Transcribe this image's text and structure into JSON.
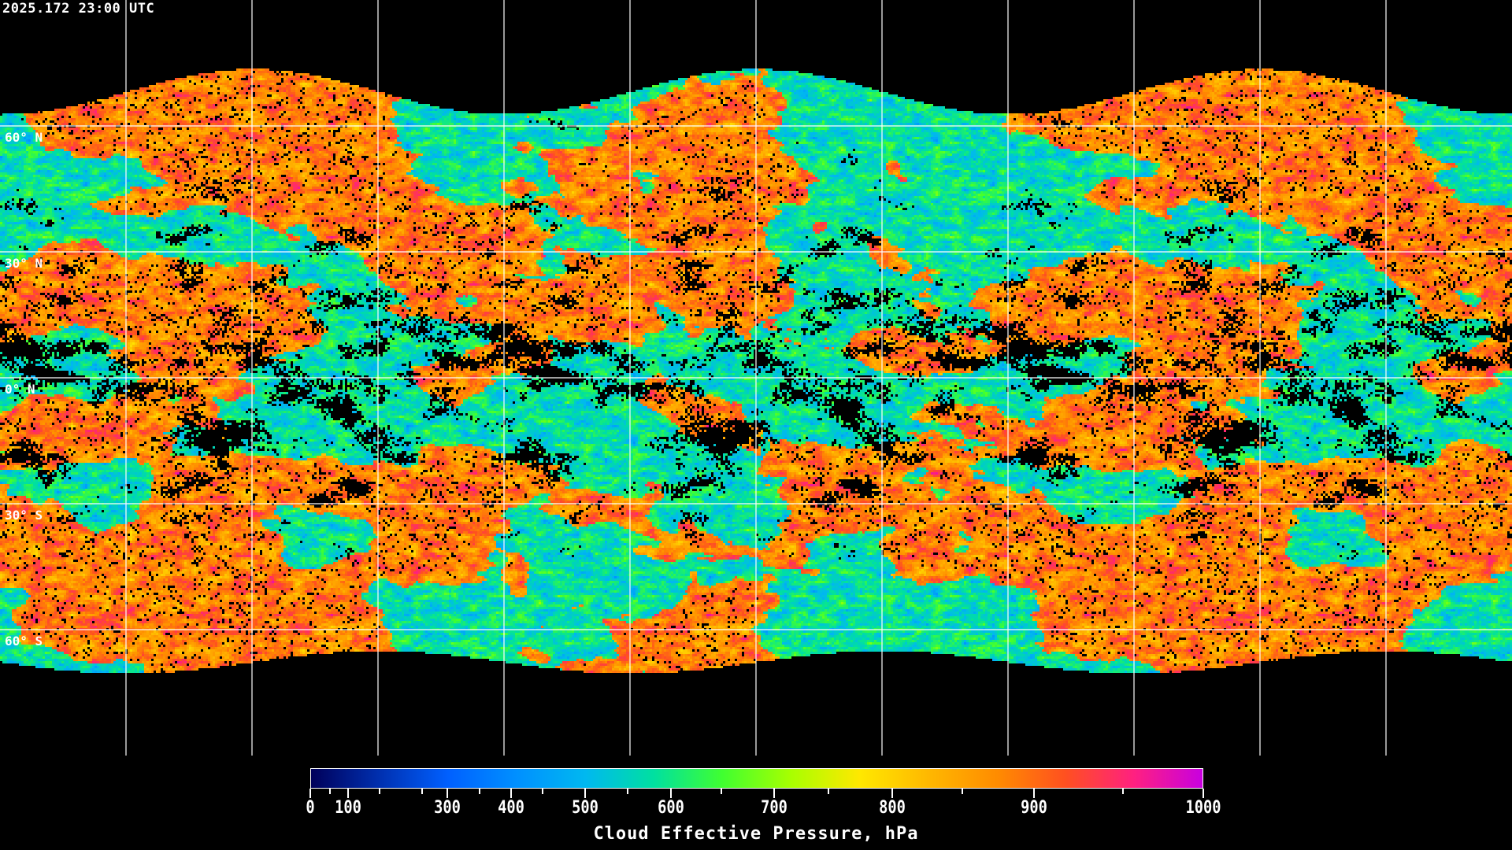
{
  "title": "2025.172 23:00 UTC",
  "map": {
    "projection": "equirectangular",
    "grid_lon_step_deg": 30,
    "grid_lat_step_deg": 30,
    "lat_labels": [
      "60° N",
      "30° N",
      "0° N",
      "30° S",
      "60° S"
    ],
    "lat_values": [
      60,
      30,
      0,
      -30,
      -60
    ],
    "coastline_color": "#ffffff",
    "gridline_color": "#ffffff",
    "no_data_color": "#000000"
  },
  "colorbar": {
    "label": "Cloud Effective Pressure, hPa",
    "min": 0,
    "max": 1000,
    "tick_labels": [
      "0",
      "100",
      "300",
      "400",
      "500",
      "600",
      "700",
      "800",
      "900",
      "1000"
    ],
    "tick_values": [
      0,
      100,
      300,
      400,
      500,
      600,
      700,
      800,
      900,
      1000
    ],
    "colors": [
      "#00005a",
      "#0030b0",
      "#0060ff",
      "#0090ff",
      "#00b8f0",
      "#00e0a0",
      "#40ff30",
      "#a8ff00",
      "#ffe800",
      "#ffb800",
      "#ff8c00",
      "#ff5020",
      "#ff2080",
      "#c800e0"
    ]
  }
}
